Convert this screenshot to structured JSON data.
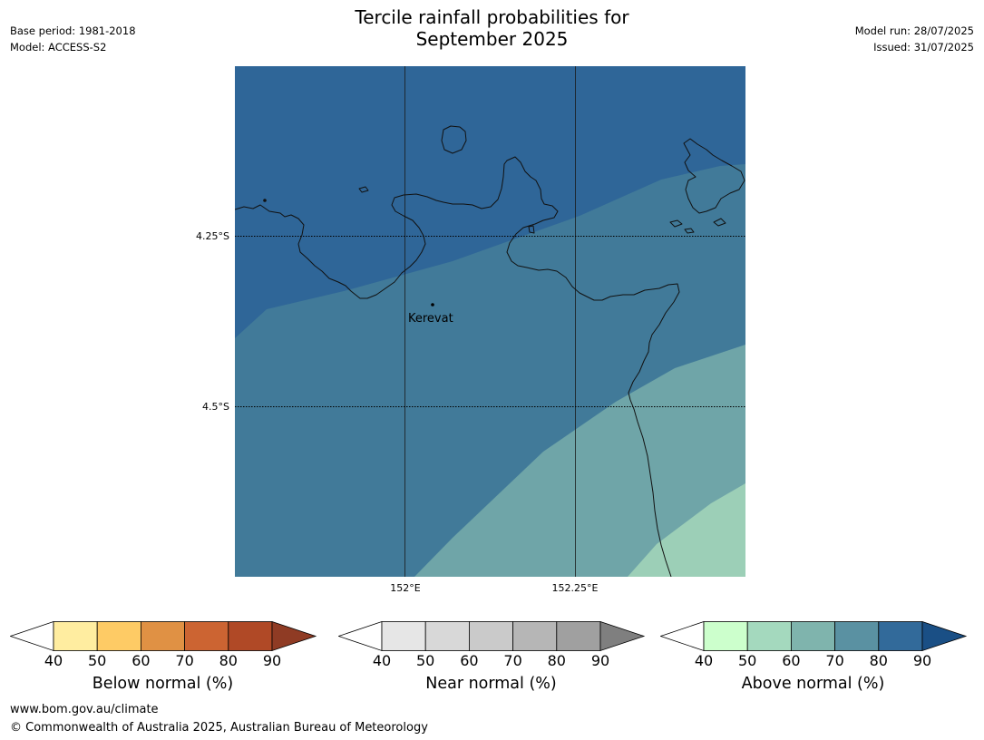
{
  "title": {
    "line1": "Tercile rainfall probabilities for",
    "line2": "September 2025"
  },
  "meta_left": {
    "base_period": "Base period: 1981-2018",
    "model": "Model: ACCESS-S2"
  },
  "meta_right": {
    "model_run": "Model run: 28/07/2025",
    "issued": "Issued: 31/07/2025"
  },
  "map": {
    "lat_labels": [
      "4.25°S",
      "4.5°S"
    ],
    "lon_labels": [
      "152°E",
      "152.25°E"
    ],
    "place": {
      "name": "Kerevat"
    },
    "zone_colors": {
      "dark_blue": "#2f6698",
      "steel_blue": "#417a99",
      "teal": "#6fa5a8",
      "light_green": "#9ccfb7"
    }
  },
  "colorbars": [
    {
      "title": "Below normal (%)",
      "ticks": [
        "40",
        "50",
        "60",
        "70",
        "80",
        "90"
      ],
      "colors": [
        "#ffffff",
        "#ffeda0",
        "#fecb65",
        "#e09144",
        "#cc6432",
        "#b04926",
        "#8f3b24"
      ]
    },
    {
      "title": "Near normal (%)",
      "ticks": [
        "40",
        "50",
        "60",
        "70",
        "80",
        "90"
      ],
      "colors": [
        "#ffffff",
        "#e6e6e6",
        "#d8d8d8",
        "#cacaca",
        "#b6b6b6",
        "#a0a0a0",
        "#7f7f7f"
      ]
    },
    {
      "title": "Above normal (%)",
      "ticks": [
        "40",
        "50",
        "60",
        "70",
        "80",
        "90"
      ],
      "colors": [
        "#ffffff",
        "#ccffcc",
        "#a4d9be",
        "#7fb4ad",
        "#5a91a2",
        "#326a9a",
        "#1a4f85"
      ]
    }
  ],
  "footer": {
    "url": "www.bom.gov.au/climate",
    "copyright": "© Commonwealth of Australia 2025, Australian Bureau of Meteorology"
  }
}
